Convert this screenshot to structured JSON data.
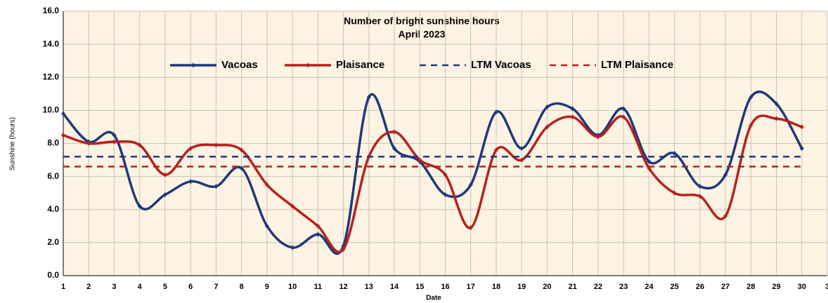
{
  "chart_data": {
    "type": "line",
    "title": "Number of bright sunshine hours",
    "subtitle": "April 2023",
    "x_label": "Date",
    "y_label": "Sunshine (hours)",
    "x": [
      1,
      2,
      3,
      4,
      5,
      6,
      7,
      8,
      9,
      10,
      11,
      12,
      13,
      14,
      15,
      16,
      17,
      18,
      19,
      20,
      21,
      22,
      23,
      24,
      25,
      26,
      27,
      28,
      29,
      30
    ],
    "xlim": [
      1,
      31
    ],
    "xticks": [
      1,
      2,
      3,
      4,
      5,
      6,
      7,
      8,
      9,
      10,
      11,
      12,
      13,
      14,
      15,
      16,
      17,
      18,
      19,
      20,
      21,
      22,
      23,
      24,
      25,
      26,
      27,
      28,
      29,
      30,
      {
        "value": 31,
        "label": "3"
      }
    ],
    "ylim": [
      0,
      16
    ],
    "yticks": [
      {
        "value": 0,
        "label": "0.0"
      },
      {
        "value": 2,
        "label": "2.0"
      },
      {
        "value": 4,
        "label": "4.0"
      },
      {
        "value": 6,
        "label": "6.0"
      },
      {
        "value": 8,
        "label": "8.0"
      },
      {
        "value": 10,
        "label": "10.0"
      },
      {
        "value": 12,
        "label": "12.0"
      },
      {
        "value": 14,
        "label": "14.0"
      },
      {
        "value": 16,
        "label": "16.0"
      }
    ],
    "grid": true,
    "series": [
      {
        "name": "Vacoas",
        "color": "#1f3a78",
        "smooth": true,
        "markers": true,
        "values": [
          9.8,
          8.1,
          8.5,
          4.2,
          4.9,
          5.7,
          5.4,
          6.5,
          3.0,
          1.7,
          2.5,
          1.8,
          10.8,
          7.7,
          6.9,
          4.9,
          5.5,
          9.9,
          7.7,
          10.2,
          10.1,
          8.5,
          10.1,
          6.9,
          7.4,
          5.4,
          6.1,
          10.8,
          10.4,
          7.7
        ]
      },
      {
        "name": "Plaisance",
        "color": "#b5221e",
        "smooth": true,
        "markers": true,
        "values": [
          8.5,
          8.0,
          8.1,
          7.9,
          6.1,
          7.7,
          7.9,
          7.6,
          5.5,
          4.2,
          3.0,
          1.6,
          7.2,
          8.7,
          7.0,
          6.1,
          2.9,
          7.6,
          7.0,
          9.0,
          9.6,
          8.4,
          9.6,
          6.5,
          5.0,
          4.8,
          3.6,
          9.1,
          9.5,
          9.0
        ]
      },
      {
        "name": "LTM Vacoas",
        "color": "#1f3a78",
        "dashed": true,
        "values": [
          7.2,
          7.2,
          7.2,
          7.2,
          7.2,
          7.2,
          7.2,
          7.2,
          7.2,
          7.2,
          7.2,
          7.2,
          7.2,
          7.2,
          7.2,
          7.2,
          7.2,
          7.2,
          7.2,
          7.2,
          7.2,
          7.2,
          7.2,
          7.2,
          7.2,
          7.2,
          7.2,
          7.2,
          7.2,
          7.2
        ]
      },
      {
        "name": "LTM Plaisance",
        "color": "#b5221e",
        "dashed": true,
        "values": [
          6.6,
          6.6,
          6.6,
          6.6,
          6.6,
          6.6,
          6.6,
          6.6,
          6.6,
          6.6,
          6.6,
          6.6,
          6.6,
          6.6,
          6.6,
          6.6,
          6.6,
          6.6,
          6.6,
          6.6,
          6.6,
          6.6,
          6.6,
          6.6,
          6.6,
          6.6,
          6.6,
          6.6,
          6.6,
          6.6
        ]
      }
    ]
  }
}
